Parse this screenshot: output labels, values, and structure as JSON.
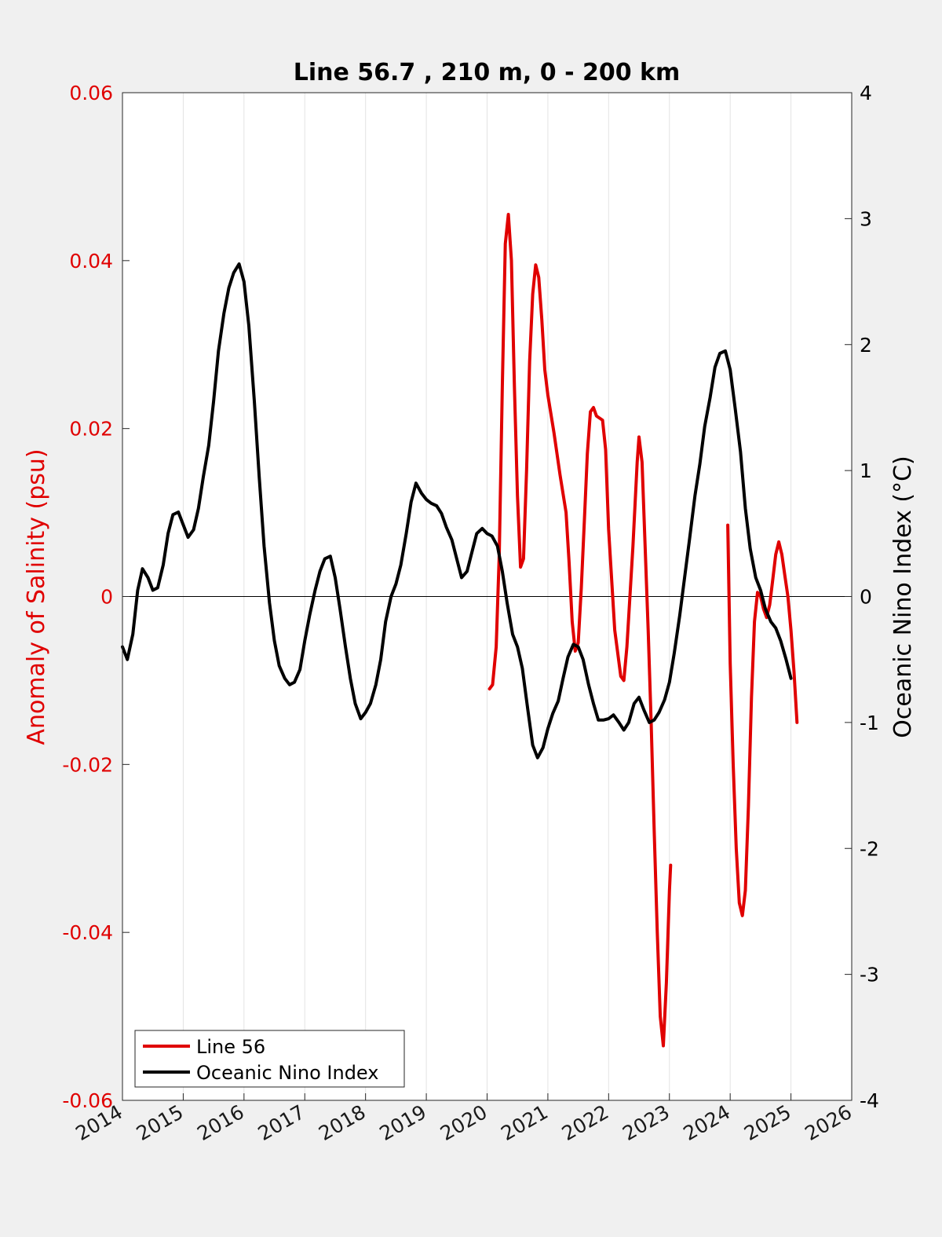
{
  "chart_data": {
    "type": "line",
    "title": "Line 56.7 , 210 m, 0 - 200 km",
    "xlabel": "",
    "ylabel_left": "Anomaly of Salinity (psu)",
    "ylabel_right": "Oceanic Nino Index (°C)",
    "xlim": [
      2014,
      2026
    ],
    "ylim_left": [
      -0.06,
      0.06
    ],
    "ylim_right": [
      -4,
      4
    ],
    "x_ticks": [
      "2014",
      "2015",
      "2016",
      "2017",
      "2018",
      "2019",
      "2020",
      "2021",
      "2022",
      "2023",
      "2024",
      "2025",
      "2026"
    ],
    "y_left_ticks": [
      "-0.06",
      "-0.04",
      "-0.02",
      "0",
      "0.02",
      "0.04",
      "0.06"
    ],
    "y_right_ticks": [
      "-4",
      "-3",
      "-2",
      "-1",
      "0",
      "1",
      "2",
      "3",
      "4"
    ],
    "grid": "vertical",
    "zero_line": true,
    "legend": {
      "position": "bottom-left"
    },
    "colors": {
      "left_axis": "#e00000",
      "line56": "#e00000",
      "oni": "#000000"
    },
    "series": [
      {
        "name": "Line 56",
        "axis": "left",
        "color": "#e00000",
        "segments": [
          [
            [
              2020.04,
              -0.011
            ],
            [
              2020.09,
              -0.0105
            ],
            [
              2020.15,
              -0.006
            ],
            [
              2020.2,
              0.005
            ],
            [
              2020.25,
              0.025
            ],
            [
              2020.3,
              0.042
            ],
            [
              2020.35,
              0.0455
            ],
            [
              2020.4,
              0.04
            ],
            [
              2020.45,
              0.025
            ],
            [
              2020.5,
              0.012
            ],
            [
              2020.55,
              0.0035
            ],
            [
              2020.6,
              0.0045
            ],
            [
              2020.65,
              0.015
            ],
            [
              2020.7,
              0.028
            ],
            [
              2020.75,
              0.036
            ],
            [
              2020.8,
              0.0395
            ],
            [
              2020.85,
              0.038
            ],
            [
              2020.9,
              0.033
            ],
            [
              2020.95,
              0.027
            ],
            [
              2021.0,
              0.024
            ],
            [
              2021.1,
              0.0195
            ],
            [
              2021.2,
              0.0145
            ],
            [
              2021.3,
              0.01
            ],
            [
              2021.35,
              0.004
            ],
            [
              2021.4,
              -0.003
            ],
            [
              2021.45,
              -0.0065
            ],
            [
              2021.5,
              -0.0055
            ],
            [
              2021.55,
              0.001
            ],
            [
              2021.6,
              0.009
            ],
            [
              2021.65,
              0.017
            ],
            [
              2021.7,
              0.022
            ],
            [
              2021.75,
              0.0225
            ],
            [
              2021.8,
              0.0215
            ],
            [
              2021.9,
              0.021
            ],
            [
              2021.95,
              0.0175
            ],
            [
              2022.0,
              0.008
            ],
            [
              2022.1,
              -0.004
            ],
            [
              2022.2,
              -0.0095
            ],
            [
              2022.25,
              -0.01
            ],
            [
              2022.3,
              -0.006
            ],
            [
              2022.4,
              0.006
            ],
            [
              2022.47,
              0.016
            ],
            [
              2022.5,
              0.019
            ],
            [
              2022.55,
              0.016
            ],
            [
              2022.6,
              0.006
            ],
            [
              2022.65,
              -0.004
            ],
            [
              2022.7,
              -0.015
            ],
            [
              2022.75,
              -0.028
            ],
            [
              2022.8,
              -0.04
            ],
            [
              2022.85,
              -0.05
            ],
            [
              2022.9,
              -0.0535
            ],
            [
              2022.95,
              -0.046
            ],
            [
              2023.0,
              -0.035
            ],
            [
              2023.02,
              -0.032
            ]
          ],
          [
            [
              2023.96,
              0.0085
            ],
            [
              2024.0,
              -0.008
            ],
            [
              2024.05,
              -0.02
            ],
            [
              2024.1,
              -0.03
            ],
            [
              2024.15,
              -0.0365
            ],
            [
              2024.2,
              -0.038
            ],
            [
              2024.25,
              -0.035
            ],
            [
              2024.3,
              -0.025
            ],
            [
              2024.35,
              -0.012
            ],
            [
              2024.4,
              -0.003
            ],
            [
              2024.45,
              0.0005
            ],
            [
              2024.5,
              0.0
            ],
            [
              2024.55,
              -0.0015
            ],
            [
              2024.6,
              -0.0025
            ],
            [
              2024.65,
              -0.001
            ],
            [
              2024.7,
              0.002
            ],
            [
              2024.75,
              0.005
            ],
            [
              2024.8,
              0.0065
            ],
            [
              2024.85,
              0.005
            ],
            [
              2024.9,
              0.0025
            ],
            [
              2024.95,
              0.0
            ],
            [
              2025.0,
              -0.004
            ],
            [
              2025.05,
              -0.009
            ],
            [
              2025.1,
              -0.015
            ]
          ]
        ]
      },
      {
        "name": "Oceanic Nino Index",
        "axis": "right",
        "color": "#000000",
        "segments": [
          [
            [
              2014.0,
              -0.4
            ],
            [
              2014.08,
              -0.5
            ],
            [
              2014.17,
              -0.3
            ],
            [
              2014.25,
              0.05
            ],
            [
              2014.33,
              0.22
            ],
            [
              2014.42,
              0.15
            ],
            [
              2014.5,
              0.05
            ],
            [
              2014.58,
              0.07
            ],
            [
              2014.67,
              0.25
            ],
            [
              2014.75,
              0.5
            ],
            [
              2014.83,
              0.65
            ],
            [
              2014.92,
              0.67
            ],
            [
              2015.0,
              0.57
            ],
            [
              2015.08,
              0.47
            ],
            [
              2015.17,
              0.53
            ],
            [
              2015.25,
              0.7
            ],
            [
              2015.33,
              0.95
            ],
            [
              2015.42,
              1.2
            ],
            [
              2015.5,
              1.55
            ],
            [
              2015.58,
              1.95
            ],
            [
              2015.67,
              2.25
            ],
            [
              2015.75,
              2.45
            ],
            [
              2015.83,
              2.57
            ],
            [
              2015.92,
              2.64
            ],
            [
              2016.0,
              2.5
            ],
            [
              2016.08,
              2.15
            ],
            [
              2016.17,
              1.55
            ],
            [
              2016.25,
              0.95
            ],
            [
              2016.33,
              0.4
            ],
            [
              2016.42,
              -0.05
            ],
            [
              2016.5,
              -0.35
            ],
            [
              2016.58,
              -0.55
            ],
            [
              2016.67,
              -0.65
            ],
            [
              2016.75,
              -0.7
            ],
            [
              2016.83,
              -0.68
            ],
            [
              2016.92,
              -0.58
            ],
            [
              2017.0,
              -0.35
            ],
            [
              2017.08,
              -0.15
            ],
            [
              2017.17,
              0.05
            ],
            [
              2017.25,
              0.2
            ],
            [
              2017.33,
              0.3
            ],
            [
              2017.42,
              0.32
            ],
            [
              2017.5,
              0.15
            ],
            [
              2017.58,
              -0.1
            ],
            [
              2017.67,
              -0.4
            ],
            [
              2017.75,
              -0.65
            ],
            [
              2017.83,
              -0.85
            ],
            [
              2017.92,
              -0.97
            ],
            [
              2018.0,
              -0.92
            ],
            [
              2018.08,
              -0.85
            ],
            [
              2018.17,
              -0.7
            ],
            [
              2018.25,
              -0.5
            ],
            [
              2018.33,
              -0.2
            ],
            [
              2018.42,
              0.0
            ],
            [
              2018.5,
              0.1
            ],
            [
              2018.58,
              0.25
            ],
            [
              2018.67,
              0.5
            ],
            [
              2018.75,
              0.75
            ],
            [
              2018.83,
              0.9
            ],
            [
              2018.92,
              0.82
            ],
            [
              2019.0,
              0.77
            ],
            [
              2019.08,
              0.74
            ],
            [
              2019.17,
              0.72
            ],
            [
              2019.25,
              0.66
            ],
            [
              2019.33,
              0.55
            ],
            [
              2019.42,
              0.45
            ],
            [
              2019.5,
              0.3
            ],
            [
              2019.58,
              0.15
            ],
            [
              2019.67,
              0.2
            ],
            [
              2019.75,
              0.35
            ],
            [
              2019.83,
              0.5
            ],
            [
              2019.92,
              0.54
            ],
            [
              2020.0,
              0.5
            ],
            [
              2020.08,
              0.48
            ],
            [
              2020.17,
              0.4
            ],
            [
              2020.25,
              0.2
            ],
            [
              2020.33,
              -0.05
            ],
            [
              2020.42,
              -0.3
            ],
            [
              2020.5,
              -0.4
            ],
            [
              2020.58,
              -0.57
            ],
            [
              2020.67,
              -0.9
            ],
            [
              2020.75,
              -1.18
            ],
            [
              2020.83,
              -1.28
            ],
            [
              2020.92,
              -1.2
            ],
            [
              2021.0,
              -1.05
            ],
            [
              2021.08,
              -0.93
            ],
            [
              2021.17,
              -0.83
            ],
            [
              2021.25,
              -0.65
            ],
            [
              2021.33,
              -0.48
            ],
            [
              2021.42,
              -0.38
            ],
            [
              2021.5,
              -0.4
            ],
            [
              2021.58,
              -0.5
            ],
            [
              2021.67,
              -0.7
            ],
            [
              2021.75,
              -0.85
            ],
            [
              2021.83,
              -0.98
            ],
            [
              2021.92,
              -0.98
            ],
            [
              2022.0,
              -0.97
            ],
            [
              2022.08,
              -0.94
            ],
            [
              2022.17,
              -1.0
            ],
            [
              2022.25,
              -1.06
            ],
            [
              2022.33,
              -1.0
            ],
            [
              2022.42,
              -0.85
            ],
            [
              2022.5,
              -0.8
            ],
            [
              2022.58,
              -0.9
            ],
            [
              2022.67,
              -1.0
            ],
            [
              2022.75,
              -0.98
            ],
            [
              2022.83,
              -0.92
            ],
            [
              2022.92,
              -0.82
            ],
            [
              2023.0,
              -0.68
            ],
            [
              2023.08,
              -0.45
            ],
            [
              2023.17,
              -0.15
            ],
            [
              2023.25,
              0.15
            ],
            [
              2023.33,
              0.45
            ],
            [
              2023.42,
              0.8
            ],
            [
              2023.5,
              1.05
            ],
            [
              2023.58,
              1.35
            ],
            [
              2023.67,
              1.58
            ],
            [
              2023.75,
              1.82
            ],
            [
              2023.83,
              1.93
            ],
            [
              2023.92,
              1.95
            ],
            [
              2024.0,
              1.8
            ],
            [
              2024.08,
              1.5
            ],
            [
              2024.17,
              1.15
            ],
            [
              2024.25,
              0.7
            ],
            [
              2024.33,
              0.38
            ],
            [
              2024.42,
              0.15
            ],
            [
              2024.5,
              0.05
            ],
            [
              2024.58,
              -0.1
            ],
            [
              2024.67,
              -0.2
            ],
            [
              2024.75,
              -0.25
            ],
            [
              2024.83,
              -0.35
            ],
            [
              2024.92,
              -0.5
            ],
            [
              2025.0,
              -0.65
            ]
          ]
        ]
      }
    ]
  }
}
